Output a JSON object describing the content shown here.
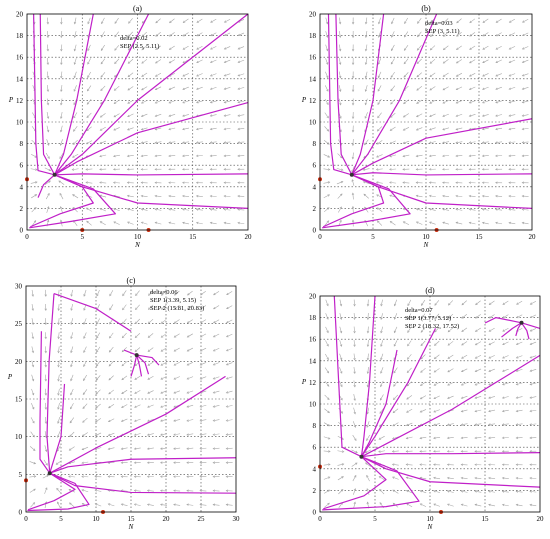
{
  "chart_data": [
    {
      "type": "line",
      "panel": "(a)",
      "title": "(a)",
      "annotations": [
        "delta=0.02",
        "SEP (2.5, 5.11)"
      ],
      "xlabel": "N",
      "ylabel": "P",
      "xlim": [
        0,
        20
      ],
      "ylim": [
        0,
        20
      ],
      "xticks": [
        0,
        5,
        10,
        15,
        20
      ],
      "yticks": [
        0,
        2,
        4,
        6,
        8,
        10,
        12,
        14,
        16,
        18,
        20
      ],
      "equilibria": [
        {
          "x": 2.5,
          "y": 5.11,
          "kind": "sep"
        },
        {
          "x": 0,
          "y": 4.7,
          "kind": "boundary"
        },
        {
          "x": 5,
          "y": 0,
          "kind": "boundary"
        },
        {
          "x": 11,
          "y": 0,
          "kind": "boundary"
        }
      ],
      "series": [
        {
          "points": [
            [
              1.2,
              20
            ],
            [
              1.3,
              12
            ],
            [
              1.5,
              7
            ],
            [
              2.5,
              5.11
            ]
          ]
        },
        {
          "points": [
            [
              0.6,
              20
            ],
            [
              0.8,
              8
            ],
            [
              1,
              5.5
            ],
            [
              2.5,
              5.11
            ]
          ]
        },
        {
          "points": [
            [
              6,
              20
            ],
            [
              4.5,
              12
            ],
            [
              3.3,
              7
            ],
            [
              2.5,
              5.11
            ]
          ]
        },
        {
          "points": [
            [
              11,
              20
            ],
            [
              7,
              12
            ],
            [
              4,
              7
            ],
            [
              2.5,
              5.11
            ]
          ]
        },
        {
          "points": [
            [
              20,
              20
            ],
            [
              10,
              12
            ],
            [
              5,
              7
            ],
            [
              2.5,
              5.11
            ]
          ]
        },
        {
          "points": [
            [
              20,
              11.8
            ],
            [
              10,
              9
            ],
            [
              4.5,
              6.3
            ],
            [
              2.5,
              5.11
            ]
          ]
        },
        {
          "points": [
            [
              20,
              5.2
            ],
            [
              10,
              5.1
            ],
            [
              5,
              5.2
            ],
            [
              2.5,
              5.11
            ]
          ]
        },
        {
          "points": [
            [
              20,
              2
            ],
            [
              10,
              2.5
            ],
            [
              5,
              4
            ],
            [
              2.5,
              5.11
            ]
          ]
        },
        {
          "points": [
            [
              0.3,
              0.3
            ],
            [
              3,
              1.5
            ],
            [
              6,
              2.5
            ],
            [
              5,
              4
            ],
            [
              2.5,
              5.11
            ]
          ]
        },
        {
          "points": [
            [
              0.2,
              0.2
            ],
            [
              4,
              0.8
            ],
            [
              8,
              1.5
            ],
            [
              6,
              3.8
            ],
            [
              2.5,
              5.11
            ]
          ]
        },
        {
          "points": [
            [
              1,
              3
            ],
            [
              1.5,
              4.2
            ],
            [
              2.5,
              5.11
            ]
          ]
        }
      ]
    },
    {
      "type": "line",
      "panel": "(b)",
      "title": "(b)",
      "annotations": [
        "delta=0.03",
        "SEP (3, 5.11)"
      ],
      "xlabel": "N",
      "ylabel": "P",
      "xlim": [
        0,
        20
      ],
      "ylim": [
        0,
        20
      ],
      "xticks": [
        0,
        5,
        10,
        15,
        20
      ],
      "yticks": [
        0,
        2,
        4,
        6,
        8,
        10,
        12,
        14,
        16,
        18,
        20
      ],
      "equilibria": [
        {
          "x": 3,
          "y": 5.11,
          "kind": "sep"
        },
        {
          "x": 0,
          "y": 4.7,
          "kind": "boundary"
        },
        {
          "x": 11,
          "y": 0,
          "kind": "boundary"
        }
      ],
      "series": [
        {
          "points": [
            [
              1.5,
              20
            ],
            [
              1.7,
              12
            ],
            [
              2,
              7
            ],
            [
              3,
              5.11
            ]
          ]
        },
        {
          "points": [
            [
              0.8,
              20
            ],
            [
              1,
              8
            ],
            [
              1.3,
              5.6
            ],
            [
              3,
              5.11
            ]
          ]
        },
        {
          "points": [
            [
              6,
              20
            ],
            [
              5,
              12
            ],
            [
              3.8,
              7
            ],
            [
              3,
              5.11
            ]
          ]
        },
        {
          "points": [
            [
              11,
              20
            ],
            [
              7.5,
              12
            ],
            [
              4.5,
              7
            ],
            [
              3,
              5.11
            ]
          ]
        },
        {
          "points": [
            [
              20,
              10.3
            ],
            [
              10,
              8.5
            ],
            [
              5,
              6.2
            ],
            [
              3,
              5.11
            ]
          ]
        },
        {
          "points": [
            [
              20,
              5.2
            ],
            [
              10,
              5.1
            ],
            [
              5,
              5.3
            ],
            [
              3,
              5.11
            ]
          ]
        },
        {
          "points": [
            [
              20,
              2
            ],
            [
              10,
              2.5
            ],
            [
              5.5,
              4
            ],
            [
              3,
              5.11
            ]
          ]
        },
        {
          "points": [
            [
              0.3,
              0.3
            ],
            [
              3,
              1.5
            ],
            [
              6,
              2.5
            ],
            [
              5.5,
              4
            ],
            [
              3,
              5.11
            ]
          ]
        },
        {
          "points": [
            [
              0.2,
              0.2
            ],
            [
              4.5,
              0.8
            ],
            [
              8.5,
              1.5
            ],
            [
              6.5,
              3.8
            ],
            [
              3,
              5.11
            ]
          ]
        }
      ]
    },
    {
      "type": "line",
      "panel": "(c)",
      "title": "(c)",
      "annotations": [
        "delta=0.06",
        "SEP 1(3.39, 5.15)",
        "SEP 2 (15.81, 20.83)"
      ],
      "xlabel": "N",
      "ylabel": "P",
      "xlim": [
        0,
        30
      ],
      "ylim": [
        0,
        30
      ],
      "xticks": [
        0,
        5,
        10,
        15,
        20,
        25,
        30
      ],
      "yticks": [
        0,
        5,
        10,
        15,
        20,
        25,
        30
      ],
      "equilibria": [
        {
          "x": 3.39,
          "y": 5.15,
          "kind": "sep"
        },
        {
          "x": 15.81,
          "y": 20.83,
          "kind": "sep"
        },
        {
          "x": 0,
          "y": 4.2,
          "kind": "boundary"
        },
        {
          "x": 11,
          "y": 0,
          "kind": "boundary"
        }
      ],
      "series": [
        {
          "points": [
            [
              2.2,
              24
            ],
            [
              2,
              12
            ],
            [
              2,
              7
            ],
            [
              3.39,
              5.15
            ]
          ]
        },
        {
          "points": [
            [
              4,
              29
            ],
            [
              3.3,
              20
            ],
            [
              3,
              10
            ],
            [
              3.39,
              5.15
            ]
          ]
        },
        {
          "points": [
            [
              4,
              29
            ],
            [
              10,
              27
            ],
            [
              15,
              24
            ]
          ]
        },
        {
          "points": [
            [
              5.5,
              17
            ],
            [
              5,
              10
            ],
            [
              4,
              7
            ],
            [
              3.39,
              5.15
            ]
          ]
        },
        {
          "points": [
            [
              28.5,
              18
            ],
            [
              20,
              13
            ],
            [
              10,
              8.5
            ],
            [
              3.39,
              5.15
            ]
          ]
        },
        {
          "points": [
            [
              30,
              7.2
            ],
            [
              15,
              7
            ],
            [
              6,
              6
            ],
            [
              3.39,
              5.15
            ]
          ]
        },
        {
          "points": [
            [
              30,
              2.5
            ],
            [
              15,
              2.6
            ],
            [
              7,
              3.5
            ],
            [
              3.39,
              5.15
            ]
          ]
        },
        {
          "points": [
            [
              0.3,
              0.3
            ],
            [
              4,
              1.5
            ],
            [
              7,
              3
            ],
            [
              3.39,
              5.15
            ]
          ]
        },
        {
          "points": [
            [
              0.2,
              0.2
            ],
            [
              6,
              0.4
            ],
            [
              9,
              1
            ],
            [
              7,
              3.8
            ],
            [
              3.39,
              5.15
            ]
          ]
        },
        {
          "points": [
            [
              14,
              21.5
            ],
            [
              15.81,
              20.83
            ],
            [
              18,
              20.5
            ],
            [
              19,
              19.5
            ]
          ]
        },
        {
          "points": [
            [
              15,
              18
            ],
            [
              15.5,
              19.5
            ],
            [
              15.81,
              20.83
            ]
          ]
        },
        {
          "points": [
            [
              16.5,
              18
            ],
            [
              16.2,
              19.5
            ],
            [
              15.81,
              20.83
            ]
          ]
        },
        {
          "points": [
            [
              17.5,
              18.3
            ],
            [
              17,
              19.8
            ],
            [
              15.81,
              20.83
            ]
          ]
        }
      ]
    },
    {
      "type": "line",
      "panel": "(d)",
      "title": "(d)",
      "annotations": [
        "delta=0.07",
        "SEP 1(3.77, 5.12)",
        "SEP 2 (18.32, 17.52)"
      ],
      "xlabel": "N",
      "ylabel": "P",
      "xlim": [
        0,
        20
      ],
      "ylim": [
        0,
        20
      ],
      "xticks": [
        0,
        5,
        10,
        15,
        20
      ],
      "yticks": [
        0,
        2,
        4,
        6,
        8,
        10,
        12,
        14,
        16,
        18,
        20
      ],
      "equilibria": [
        {
          "x": 3.77,
          "y": 5.12,
          "kind": "sep"
        },
        {
          "x": 18.32,
          "y": 17.52,
          "kind": "sep"
        },
        {
          "x": 0,
          "y": 4.2,
          "kind": "boundary"
        },
        {
          "x": 11,
          "y": 0,
          "kind": "boundary"
        }
      ],
      "series": [
        {
          "points": [
            [
              1.3,
              20
            ],
            [
              1.8,
              10
            ],
            [
              2,
              6
            ],
            [
              3.77,
              5.12
            ]
          ]
        },
        {
          "points": [
            [
              5,
              20
            ],
            [
              4.5,
              12
            ],
            [
              4,
              7
            ],
            [
              3.77,
              5.12
            ]
          ]
        },
        {
          "points": [
            [
              7,
              15
            ],
            [
              6,
              10
            ],
            [
              4.5,
              6.5
            ],
            [
              3.77,
              5.12
            ]
          ]
        },
        {
          "points": [
            [
              10.5,
              17
            ],
            [
              8,
              12
            ],
            [
              5,
              7
            ],
            [
              3.77,
              5.12
            ]
          ]
        },
        {
          "points": [
            [
              20,
              14.5
            ],
            [
              12,
              9.5
            ],
            [
              6,
              6.3
            ],
            [
              3.77,
              5.12
            ]
          ]
        },
        {
          "points": [
            [
              20,
              5.5
            ],
            [
              12,
              5.4
            ],
            [
              6,
              5.4
            ],
            [
              3.77,
              5.12
            ]
          ]
        },
        {
          "points": [
            [
              20,
              2.3
            ],
            [
              10,
              2.8
            ],
            [
              6,
              4
            ],
            [
              3.77,
              5.12
            ]
          ]
        },
        {
          "points": [
            [
              0.3,
              0.3
            ],
            [
              4,
              1.5
            ],
            [
              6,
              3
            ],
            [
              3.77,
              5.12
            ]
          ]
        },
        {
          "points": [
            [
              0.2,
              0.2
            ],
            [
              6,
              0.5
            ],
            [
              9,
              1
            ],
            [
              7,
              3.8
            ],
            [
              3.77,
              5.12
            ]
          ]
        },
        {
          "points": [
            [
              15,
              17.5
            ],
            [
              16,
              18
            ],
            [
              18.32,
              17.52
            ],
            [
              20,
              17
            ]
          ]
        },
        {
          "points": [
            [
              16.5,
              16.2
            ],
            [
              17.5,
              17
            ],
            [
              18.32,
              17.52
            ]
          ]
        },
        {
          "points": [
            [
              19,
              16
            ],
            [
              18.8,
              16.8
            ],
            [
              18.32,
              17.52
            ]
          ]
        },
        {
          "points": [
            [
              17.8,
              16.3
            ],
            [
              18,
              17
            ],
            [
              18.32,
              17.52
            ]
          ]
        }
      ]
    }
  ]
}
